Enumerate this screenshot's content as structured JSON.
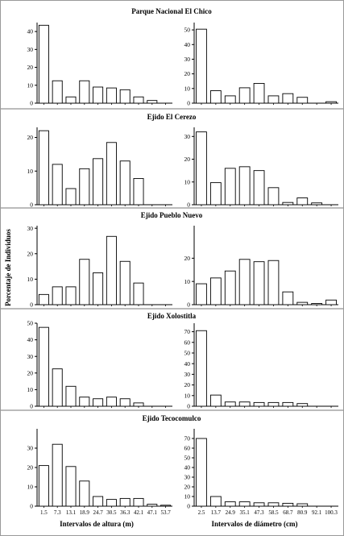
{
  "figure": {
    "ylabel": "Porcentaje de Individuos",
    "xlabel_left": "Intervalos de altura (m)",
    "xlabel_right": "Intervalos de diámetro (cm)"
  },
  "chart_data": [
    {
      "type": "bar",
      "title": "Parque Nacional El Chico",
      "height": {
        "categories": [
          "1.5",
          "7.3",
          "13.1",
          "18.9",
          "24.7",
          "30.5",
          "36.3",
          "42.1",
          "47.1",
          "53.7"
        ],
        "values": [
          43.5,
          12.5,
          3.5,
          12.5,
          9,
          8.5,
          7.5,
          3.5,
          1.5,
          0
        ],
        "ylim": [
          0,
          45
        ],
        "yticks": [
          0,
          10,
          20,
          30,
          40
        ]
      },
      "diameter": {
        "categories": [
          "2.5",
          "13.7",
          "24.9",
          "35.1",
          "47.3",
          "58.5",
          "68.7",
          "80.9",
          "92.1",
          "100.3"
        ],
        "values": [
          50.5,
          8.5,
          5,
          10.5,
          13.5,
          5,
          6.5,
          4,
          0,
          1
        ],
        "ylim": [
          0,
          55
        ],
        "yticks": [
          0,
          10,
          20,
          30,
          40,
          50
        ]
      }
    },
    {
      "type": "bar",
      "title": "Ejido El Cerezo",
      "height": {
        "categories": [
          "1.5",
          "7.3",
          "13.1",
          "18.9",
          "24.7",
          "30.5",
          "36.3",
          "42.1",
          "47.1",
          "53.7"
        ],
        "values": [
          22,
          12,
          4.8,
          10.7,
          13.7,
          18.5,
          13,
          7.8,
          0,
          0
        ],
        "ylim": [
          0,
          23
        ],
        "yticks": [
          0,
          10,
          20
        ]
      },
      "diameter": {
        "categories": [
          "2.5",
          "13.7",
          "24.9",
          "35.1",
          "47.3",
          "58.5",
          "68.7",
          "80.9",
          "92.1",
          "100.3"
        ],
        "values": [
          32,
          9.7,
          16,
          16.7,
          15,
          7.5,
          1,
          3,
          0.8,
          0
        ],
        "ylim": [
          0,
          34
        ],
        "yticks": [
          0,
          10,
          20,
          30
        ]
      }
    },
    {
      "type": "bar",
      "title": "Ejido Pueblo Nuevo",
      "height": {
        "categories": [
          "1.5",
          "7.3",
          "13.1",
          "18.9",
          "24.7",
          "30.5",
          "36.3",
          "42.1",
          "47.1",
          "53.7"
        ],
        "values": [
          4,
          7,
          7,
          17.8,
          12.5,
          26.8,
          17,
          8.5,
          0,
          0
        ],
        "ylim": [
          0,
          31
        ],
        "yticks": [
          0,
          10,
          20,
          30
        ]
      },
      "diameter": {
        "categories": [
          "2.5",
          "13.7",
          "24.9",
          "35.1",
          "47.3",
          "58.5",
          "68.7",
          "80.9",
          "92.1",
          "100.3"
        ],
        "values": [
          9,
          11.5,
          14.5,
          19.5,
          18.5,
          19,
          5.5,
          1,
          0.5,
          2
        ],
        "ylim": [
          0,
          34
        ],
        "yticks": [
          0,
          10,
          20
        ]
      }
    },
    {
      "type": "bar",
      "title": "Ejido Xolostitla",
      "height": {
        "categories": [
          "1.5",
          "7.3",
          "13.1",
          "18.9",
          "24.7",
          "30.5",
          "36.3",
          "42.1",
          "47.1",
          "53.7"
        ],
        "values": [
          47.5,
          22.5,
          12,
          5.5,
          4.5,
          5.5,
          4.5,
          2,
          0,
          0
        ],
        "ylim": [
          0,
          50
        ],
        "yticks": [
          0,
          10,
          20,
          30,
          40,
          50
        ]
      },
      "diameter": {
        "categories": [
          "2.5",
          "13.7",
          "24.9",
          "35.1",
          "47.3",
          "58.5",
          "68.7",
          "80.9",
          "92.1",
          "100.3"
        ],
        "values": [
          71,
          10.5,
          4,
          4,
          3.5,
          3.5,
          3.5,
          2.5,
          0,
          0
        ],
        "ylim": [
          0,
          78
        ],
        "yticks": [
          0,
          10,
          20,
          30,
          40,
          50,
          60,
          70
        ]
      }
    },
    {
      "type": "bar",
      "title": "Ejido Tecocomulco",
      "height": {
        "categories": [
          "1.5",
          "7.3",
          "13.1",
          "18.9",
          "24.7",
          "30.5",
          "36.3",
          "42.1",
          "47.1",
          "53.7"
        ],
        "values": [
          21,
          32,
          20.5,
          13,
          5,
          3.5,
          4,
          4,
          1,
          0.5
        ],
        "ylim": [
          0,
          40
        ],
        "yticks": [
          0,
          10,
          20,
          30
        ]
      },
      "diameter": {
        "categories": [
          "2.5",
          "13.7",
          "24.9",
          "35.1",
          "47.3",
          "58.5",
          "68.7",
          "80.9",
          "92.1",
          "100.3"
        ],
        "values": [
          70,
          10,
          4.5,
          4.5,
          3.5,
          3.5,
          3,
          2.5,
          0,
          0
        ],
        "ylim": [
          0,
          80
        ],
        "yticks": [
          0,
          10,
          20,
          30,
          40,
          50,
          60,
          70
        ]
      }
    }
  ]
}
